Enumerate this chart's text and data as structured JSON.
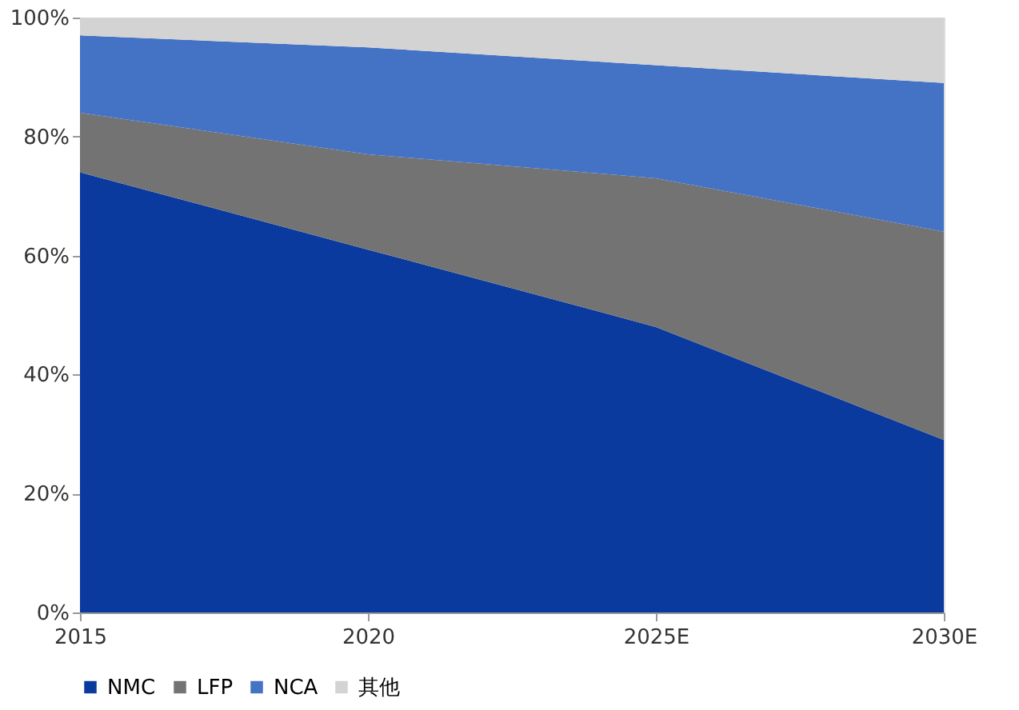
{
  "chart_data": {
    "type": "area",
    "stacked": true,
    "categories": [
      "2015",
      "2020",
      "2025E",
      "2030E"
    ],
    "series": [
      {
        "name": "NMC",
        "color": "#0a3a9e",
        "values": [
          74,
          61,
          48,
          29
        ]
      },
      {
        "name": "LFP",
        "color": "#737373",
        "values": [
          10,
          16,
          25,
          35
        ]
      },
      {
        "name": "NCA",
        "color": "#4472c4",
        "values": [
          13,
          18,
          19,
          25
        ]
      },
      {
        "name": "其他",
        "color": "#d3d3d3",
        "values": [
          3,
          5,
          8,
          11
        ]
      }
    ],
    "ylim": [
      0,
      100
    ],
    "yticks": [
      {
        "value": 0,
        "label": "0%"
      },
      {
        "value": 20,
        "label": "20%"
      },
      {
        "value": 40,
        "label": "40%"
      },
      {
        "value": 60,
        "label": "60%"
      },
      {
        "value": 80,
        "label": "80%"
      },
      {
        "value": 100,
        "label": "100%"
      }
    ],
    "grid": false,
    "legend": "bottom"
  }
}
